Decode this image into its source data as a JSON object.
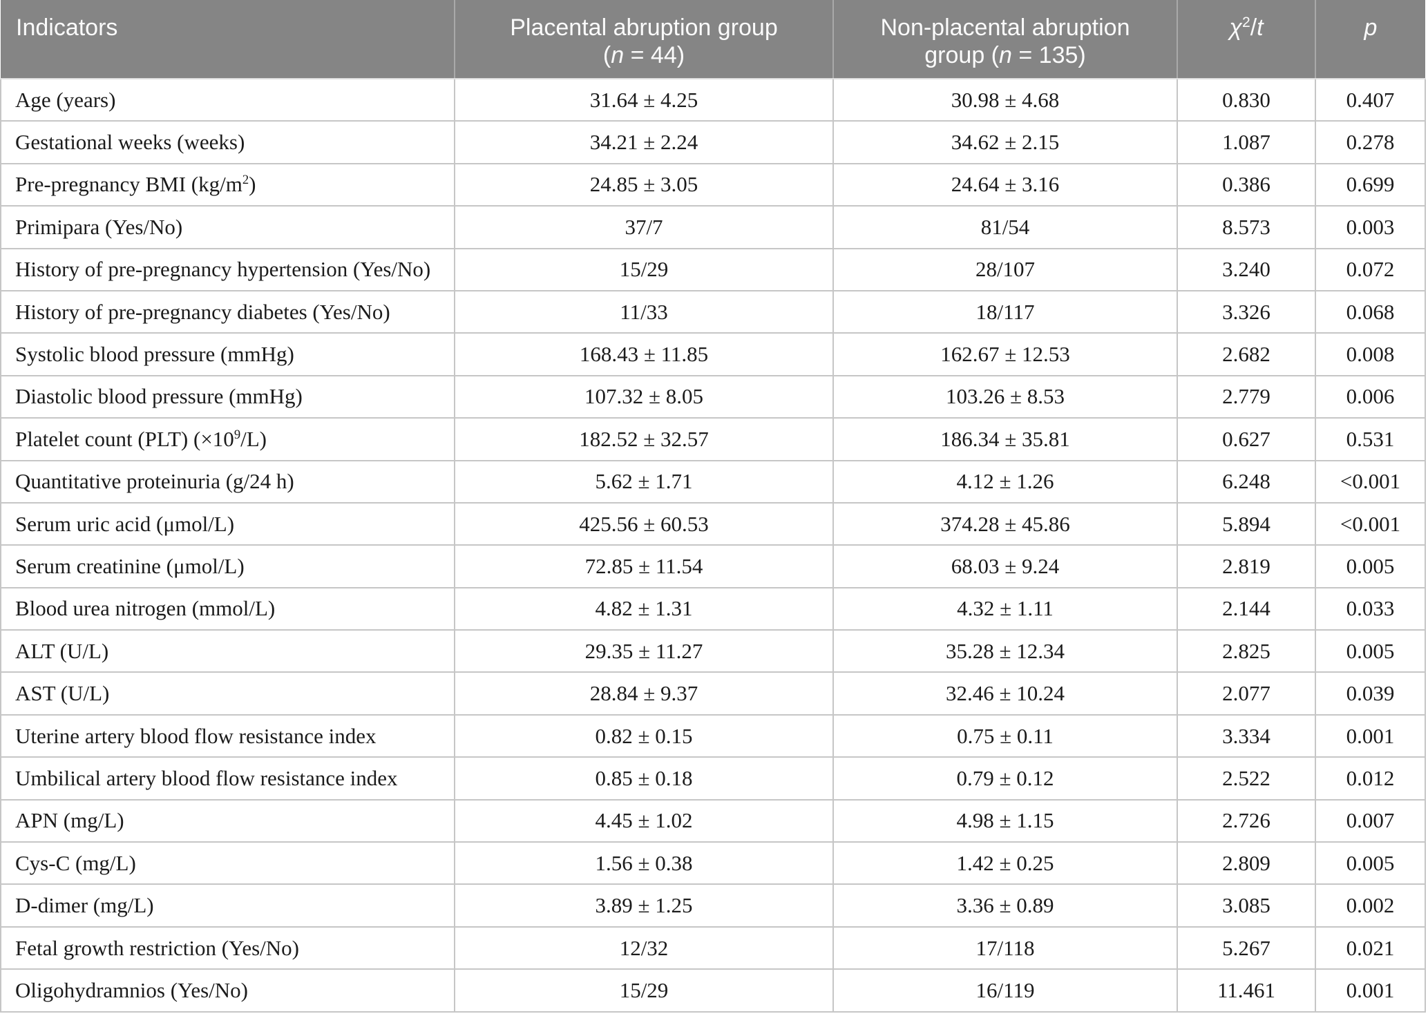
{
  "table": {
    "columns": {
      "indicators": "Indicators",
      "group1": {
        "line1": "Placental abruption group",
        "line2_pre": "(",
        "n_symbol": "n",
        "line2_post": " = 44)"
      },
      "group2": {
        "line1": "Non-placental abruption",
        "line2_pre": "group (",
        "n_symbol": "n",
        "line2_post": " = 135)"
      },
      "stat": {
        "chi": "χ",
        "sup": "2",
        "slash": "/",
        "t": "t"
      },
      "p": "p"
    },
    "rows": [
      [
        "Age (years)",
        "31.64 ± 4.25",
        "30.98 ± 4.68",
        "0.830",
        "0.407"
      ],
      [
        "Gestational weeks (weeks)",
        "34.21 ± 2.24",
        "34.62 ± 2.15",
        "1.087",
        "0.278"
      ],
      [
        "Pre-pregnancy BMI (kg/m^{2})",
        "24.85 ± 3.05",
        "24.64 ± 3.16",
        "0.386",
        "0.699"
      ],
      [
        "Primipara (Yes/No)",
        "37/7",
        "81/54",
        "8.573",
        "0.003"
      ],
      [
        "History of pre-pregnancy hypertension (Yes/No)",
        "15/29",
        "28/107",
        "3.240",
        "0.072"
      ],
      [
        "History of pre-pregnancy diabetes (Yes/No)",
        "11/33",
        "18/117",
        "3.326",
        "0.068"
      ],
      [
        "Systolic blood pressure (mmHg)",
        "168.43 ± 11.85",
        "162.67 ± 12.53",
        "2.682",
        "0.008"
      ],
      [
        "Diastolic blood pressure (mmHg)",
        "107.32 ± 8.05",
        "103.26 ± 8.53",
        "2.779",
        "0.006"
      ],
      [
        "Platelet count (PLT) (×10^{9}/L)",
        "182.52 ± 32.57",
        "186.34 ± 35.81",
        "0.627",
        "0.531"
      ],
      [
        "Quantitative proteinuria (g/24 h)",
        "5.62 ± 1.71",
        "4.12 ± 1.26",
        "6.248",
        "<0.001"
      ],
      [
        "Serum uric acid (μmol/L)",
        "425.56 ± 60.53",
        "374.28 ± 45.86",
        "5.894",
        "<0.001"
      ],
      [
        "Serum creatinine (μmol/L)",
        "72.85 ± 11.54",
        "68.03 ± 9.24",
        "2.819",
        "0.005"
      ],
      [
        "Blood urea nitrogen (mmol/L)",
        "4.82 ± 1.31",
        "4.32 ± 1.11",
        "2.144",
        "0.033"
      ],
      [
        "ALT (U/L)",
        "29.35 ± 11.27",
        "35.28 ± 12.34",
        "2.825",
        "0.005"
      ],
      [
        "AST (U/L)",
        "28.84 ± 9.37",
        "32.46 ± 10.24",
        "2.077",
        "0.039"
      ],
      [
        "Uterine artery blood flow resistance index",
        "0.82 ± 0.15",
        "0.75 ± 0.11",
        "3.334",
        "0.001"
      ],
      [
        "Umbilical artery blood flow resistance index",
        "0.85 ± 0.18",
        "0.79 ± 0.12",
        "2.522",
        "0.012"
      ],
      [
        "APN (mg/L)",
        "4.45 ± 1.02",
        "4.98 ± 1.15",
        "2.726",
        "0.007"
      ],
      [
        "Cys-C (mg/L)",
        "1.56 ± 0.38",
        "1.42 ± 0.25",
        "2.809",
        "0.005"
      ],
      [
        "D-dimer (mg/L)",
        "3.89 ± 1.25",
        "3.36 ± 0.89",
        "3.085",
        "0.002"
      ],
      [
        "Fetal growth restriction (Yes/No)",
        "12/32",
        "17/118",
        "5.267",
        "0.021"
      ],
      [
        "Oligohydramnios (Yes/No)",
        "15/29",
        "16/119",
        "11.461",
        "0.001"
      ]
    ],
    "colors": {
      "header_bg": "#858585",
      "header_text": "#fbfbfb",
      "body_text": "#1b1b1b",
      "border": "#c6c6c6"
    }
  }
}
